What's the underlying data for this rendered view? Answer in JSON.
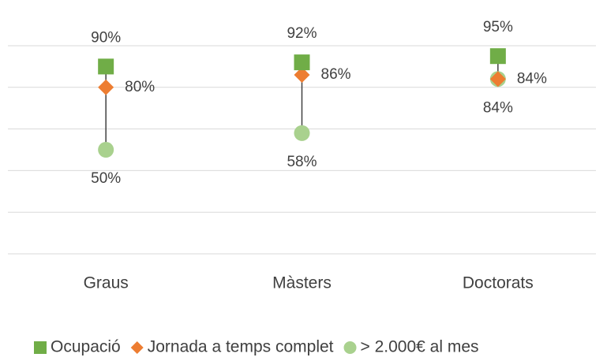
{
  "chart_data": {
    "type": "line",
    "categories": [
      "Graus",
      "Màsters",
      "Doctorats"
    ],
    "series": [
      {
        "name": "Ocupació",
        "color": "#70ad47",
        "marker": "square",
        "values": [
          90,
          92,
          95
        ],
        "value_labels": [
          "90%",
          "92%",
          "95%"
        ],
        "label_position": "above"
      },
      {
        "name": "Jornada a temps complet",
        "color": "#ed7d31",
        "marker": "diamond",
        "values": [
          80,
          86,
          84
        ],
        "value_labels": [
          "80%",
          "86%",
          "84%"
        ],
        "label_position": "right"
      },
      {
        "name": "> 2.000€ al mes",
        "color": "#a9d18e",
        "marker": "circle",
        "values": [
          50,
          58,
          84
        ],
        "value_labels": [
          "50%",
          "58%",
          "84%"
        ],
        "label_position": "below"
      }
    ],
    "show_lines": false,
    "high_low_lines": true,
    "ylim": [
      0,
      100
    ],
    "yticks": [
      0,
      20,
      40,
      60,
      80,
      100
    ],
    "grid": true,
    "legend": "bottom"
  }
}
